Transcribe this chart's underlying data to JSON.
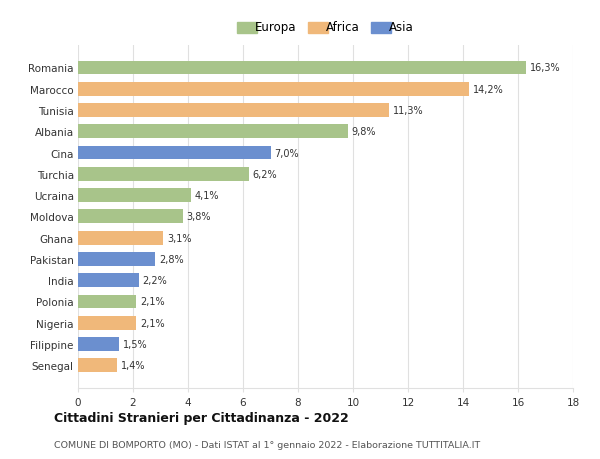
{
  "categories": [
    "Romania",
    "Marocco",
    "Tunisia",
    "Albania",
    "Cina",
    "Turchia",
    "Ucraina",
    "Moldova",
    "Ghana",
    "Pakistan",
    "India",
    "Polonia",
    "Nigeria",
    "Filippine",
    "Senegal"
  ],
  "values": [
    16.3,
    14.2,
    11.3,
    9.8,
    7.0,
    6.2,
    4.1,
    3.8,
    3.1,
    2.8,
    2.2,
    2.1,
    2.1,
    1.5,
    1.4
  ],
  "labels": [
    "16,3%",
    "14,2%",
    "11,3%",
    "9,8%",
    "7,0%",
    "6,2%",
    "4,1%",
    "3,8%",
    "3,1%",
    "2,8%",
    "2,2%",
    "2,1%",
    "2,1%",
    "1,5%",
    "1,4%"
  ],
  "colors": [
    "#a8c48a",
    "#f0b87a",
    "#f0b87a",
    "#a8c48a",
    "#6b8fcf",
    "#a8c48a",
    "#a8c48a",
    "#a8c48a",
    "#f0b87a",
    "#6b8fcf",
    "#6b8fcf",
    "#a8c48a",
    "#f0b87a",
    "#6b8fcf",
    "#f0b87a"
  ],
  "legend_labels": [
    "Europa",
    "Africa",
    "Asia"
  ],
  "legend_colors": [
    "#a8c48a",
    "#f0b87a",
    "#6b8fcf"
  ],
  "xlim": [
    0,
    18
  ],
  "xticks": [
    0,
    2,
    4,
    6,
    8,
    10,
    12,
    14,
    16,
    18
  ],
  "title": "Cittadini Stranieri per Cittadinanza - 2022",
  "subtitle": "COMUNE DI BOMPORTO (MO) - Dati ISTAT al 1° gennaio 2022 - Elaborazione TUTTITALIA.IT",
  "background_color": "#ffffff",
  "grid_color": "#e0e0e0",
  "bar_height": 0.65
}
